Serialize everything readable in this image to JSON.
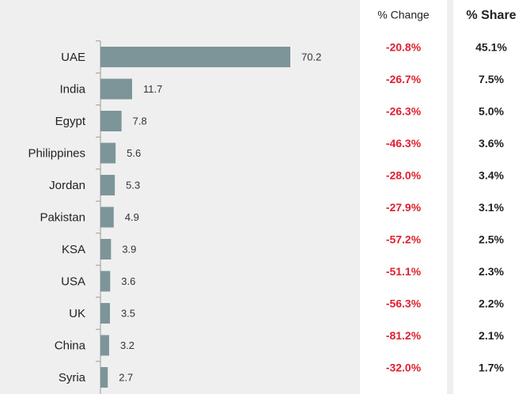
{
  "chart_data": {
    "type": "bar",
    "orientation": "horizontal",
    "color": "#7d9598",
    "categories": [
      "UAE",
      "India",
      "Egypt",
      "Philippines",
      "Jordan",
      "Pakistan",
      "KSA",
      "USA",
      "UK",
      "China",
      "Syria"
    ],
    "values": [
      70.2,
      11.7,
      7.8,
      5.6,
      5.3,
      4.9,
      3.9,
      3.6,
      3.5,
      3.2,
      2.7
    ],
    "columns": [
      {
        "header": "% Change",
        "cells": [
          "-20.8%",
          "-26.7%",
          "-26.3%",
          "-46.3%",
          "-28.0%",
          "-27.9%",
          "-57.2%",
          "-51.1%",
          "-56.3%",
          "-81.2%",
          "-32.0%"
        ]
      },
      {
        "header": "% Share",
        "cells": [
          "45.1%",
          "7.5%",
          "5.0%",
          "3.6%",
          "3.4%",
          "3.1%",
          "2.5%",
          "2.3%",
          "2.2%",
          "2.1%",
          "1.7%"
        ]
      }
    ]
  }
}
